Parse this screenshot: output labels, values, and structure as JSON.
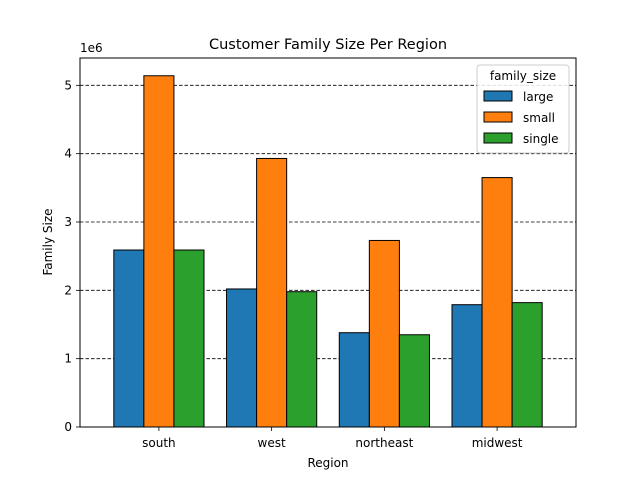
{
  "chart_data": {
    "type": "bar",
    "title": "Customer Family Size Per Region",
    "xlabel": "Region",
    "ylabel": "Family Size",
    "y_offset_label": "1e6",
    "categories": [
      "south",
      "west",
      "northeast",
      "midwest"
    ],
    "ylim": [
      0,
      5400000
    ],
    "yticks": [
      0,
      1000000,
      2000000,
      3000000,
      4000000,
      5000000
    ],
    "ytick_labels": [
      "0",
      "1",
      "2",
      "3",
      "4",
      "5"
    ],
    "grid": "horizontal dashed",
    "legend": {
      "title": "family_size",
      "placement": "top-right"
    },
    "series": [
      {
        "name": "large",
        "color": "#1f77b4",
        "values": [
          2590000,
          2020000,
          1380000,
          1790000
        ]
      },
      {
        "name": "small",
        "color": "#ff7f0e",
        "values": [
          5140000,
          3930000,
          2730000,
          3650000
        ]
      },
      {
        "name": "single",
        "color": "#2ca02c",
        "values": [
          2590000,
          1980000,
          1350000,
          1820000
        ]
      }
    ]
  }
}
